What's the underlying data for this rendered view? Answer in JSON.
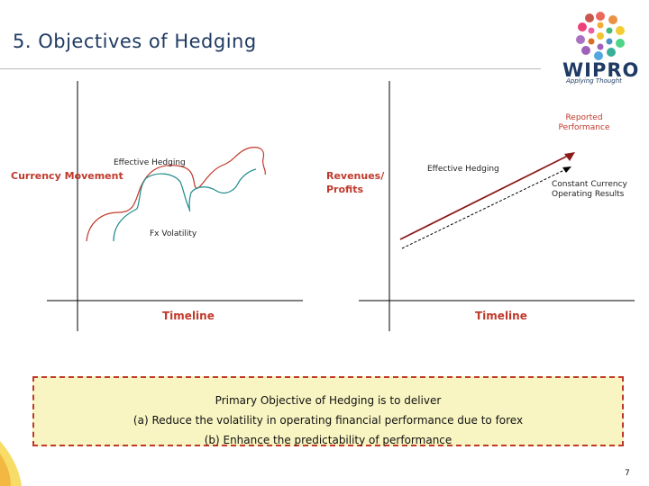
{
  "slide": {
    "title": "5. Objectives of Hedging",
    "page_number": "7"
  },
  "logo": {
    "wordmark": "WIPRO",
    "tagline": "Applying Thought"
  },
  "left_chart": {
    "y_label": "Currency Movement",
    "x_label": "Timeline",
    "series_labels": [
      "Effective Hedging",
      "Fx Volatility"
    ],
    "colors": {
      "effective_hedging": "#c0392b",
      "fx_volatility": "#1e8a8a",
      "axis": "#000000"
    }
  },
  "right_chart": {
    "y_label": "Revenues/ Profits",
    "x_label": "Timeline",
    "series_labels": [
      "Effective Hedging",
      "Reported Performance",
      "Constant Currency Operating Results"
    ],
    "colors": {
      "reported": "#8b1a1a",
      "constant": "#000000"
    }
  },
  "objective_box": {
    "heading": "Primary Objective of Hedging is to deliver",
    "point_a": "(a)  Reduce the volatility in operating financial performance due to forex",
    "point_b": "(b)  Enhance the predictability of performance"
  }
}
